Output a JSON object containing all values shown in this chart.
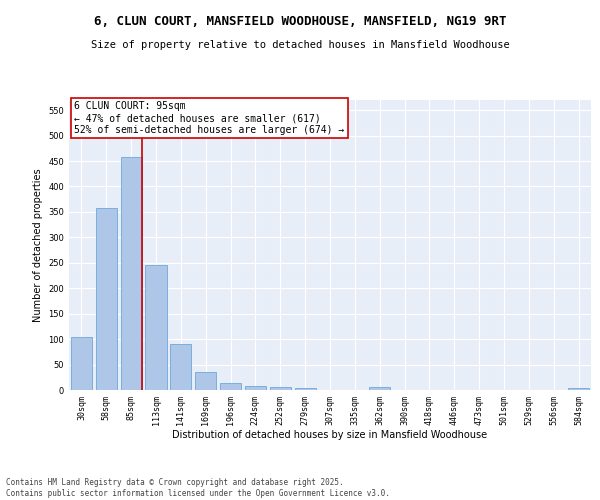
{
  "title": "6, CLUN COURT, MANSFIELD WOODHOUSE, MANSFIELD, NG19 9RT",
  "subtitle": "Size of property relative to detached houses in Mansfield Woodhouse",
  "xlabel": "Distribution of detached houses by size in Mansfield Woodhouse",
  "ylabel": "Number of detached properties",
  "categories": [
    "30sqm",
    "58sqm",
    "85sqm",
    "113sqm",
    "141sqm",
    "169sqm",
    "196sqm",
    "224sqm",
    "252sqm",
    "279sqm",
    "307sqm",
    "335sqm",
    "362sqm",
    "390sqm",
    "418sqm",
    "446sqm",
    "473sqm",
    "501sqm",
    "529sqm",
    "556sqm",
    "584sqm"
  ],
  "values": [
    105,
    357,
    457,
    246,
    91,
    35,
    13,
    8,
    5,
    4,
    0,
    0,
    5,
    0,
    0,
    0,
    0,
    0,
    0,
    0,
    3
  ],
  "bar_color": "#aec6e8",
  "bar_edge_color": "#5a9fd4",
  "vline_x_index": 2,
  "vline_color": "#cc0000",
  "annotation_text": "6 CLUN COURT: 95sqm\n← 47% of detached houses are smaller (617)\n52% of semi-detached houses are larger (674) →",
  "annotation_box_color": "#ffffff",
  "annotation_box_edge_color": "#cc0000",
  "ylim": [
    0,
    570
  ],
  "yticks": [
    0,
    50,
    100,
    150,
    200,
    250,
    300,
    350,
    400,
    450,
    500,
    550
  ],
  "background_color": "#e8eef8",
  "grid_color": "#ffffff",
  "footer_text": "Contains HM Land Registry data © Crown copyright and database right 2025.\nContains public sector information licensed under the Open Government Licence v3.0.",
  "title_fontsize": 9,
  "subtitle_fontsize": 7.5,
  "label_fontsize": 7,
  "tick_fontsize": 6,
  "annotation_fontsize": 7
}
